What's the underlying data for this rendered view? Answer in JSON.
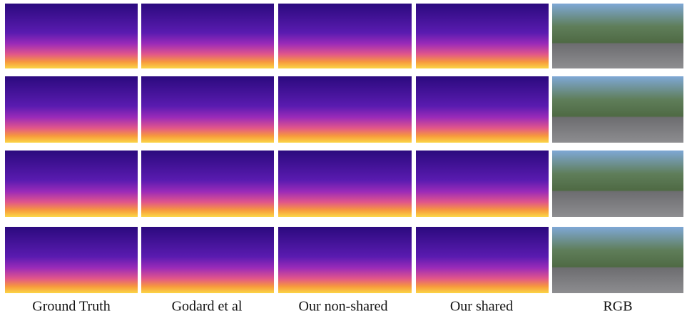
{
  "columns": [
    "Ground Truth",
    "Godard et al",
    "Our non-shared",
    "Our shared",
    "RGB"
  ]
}
